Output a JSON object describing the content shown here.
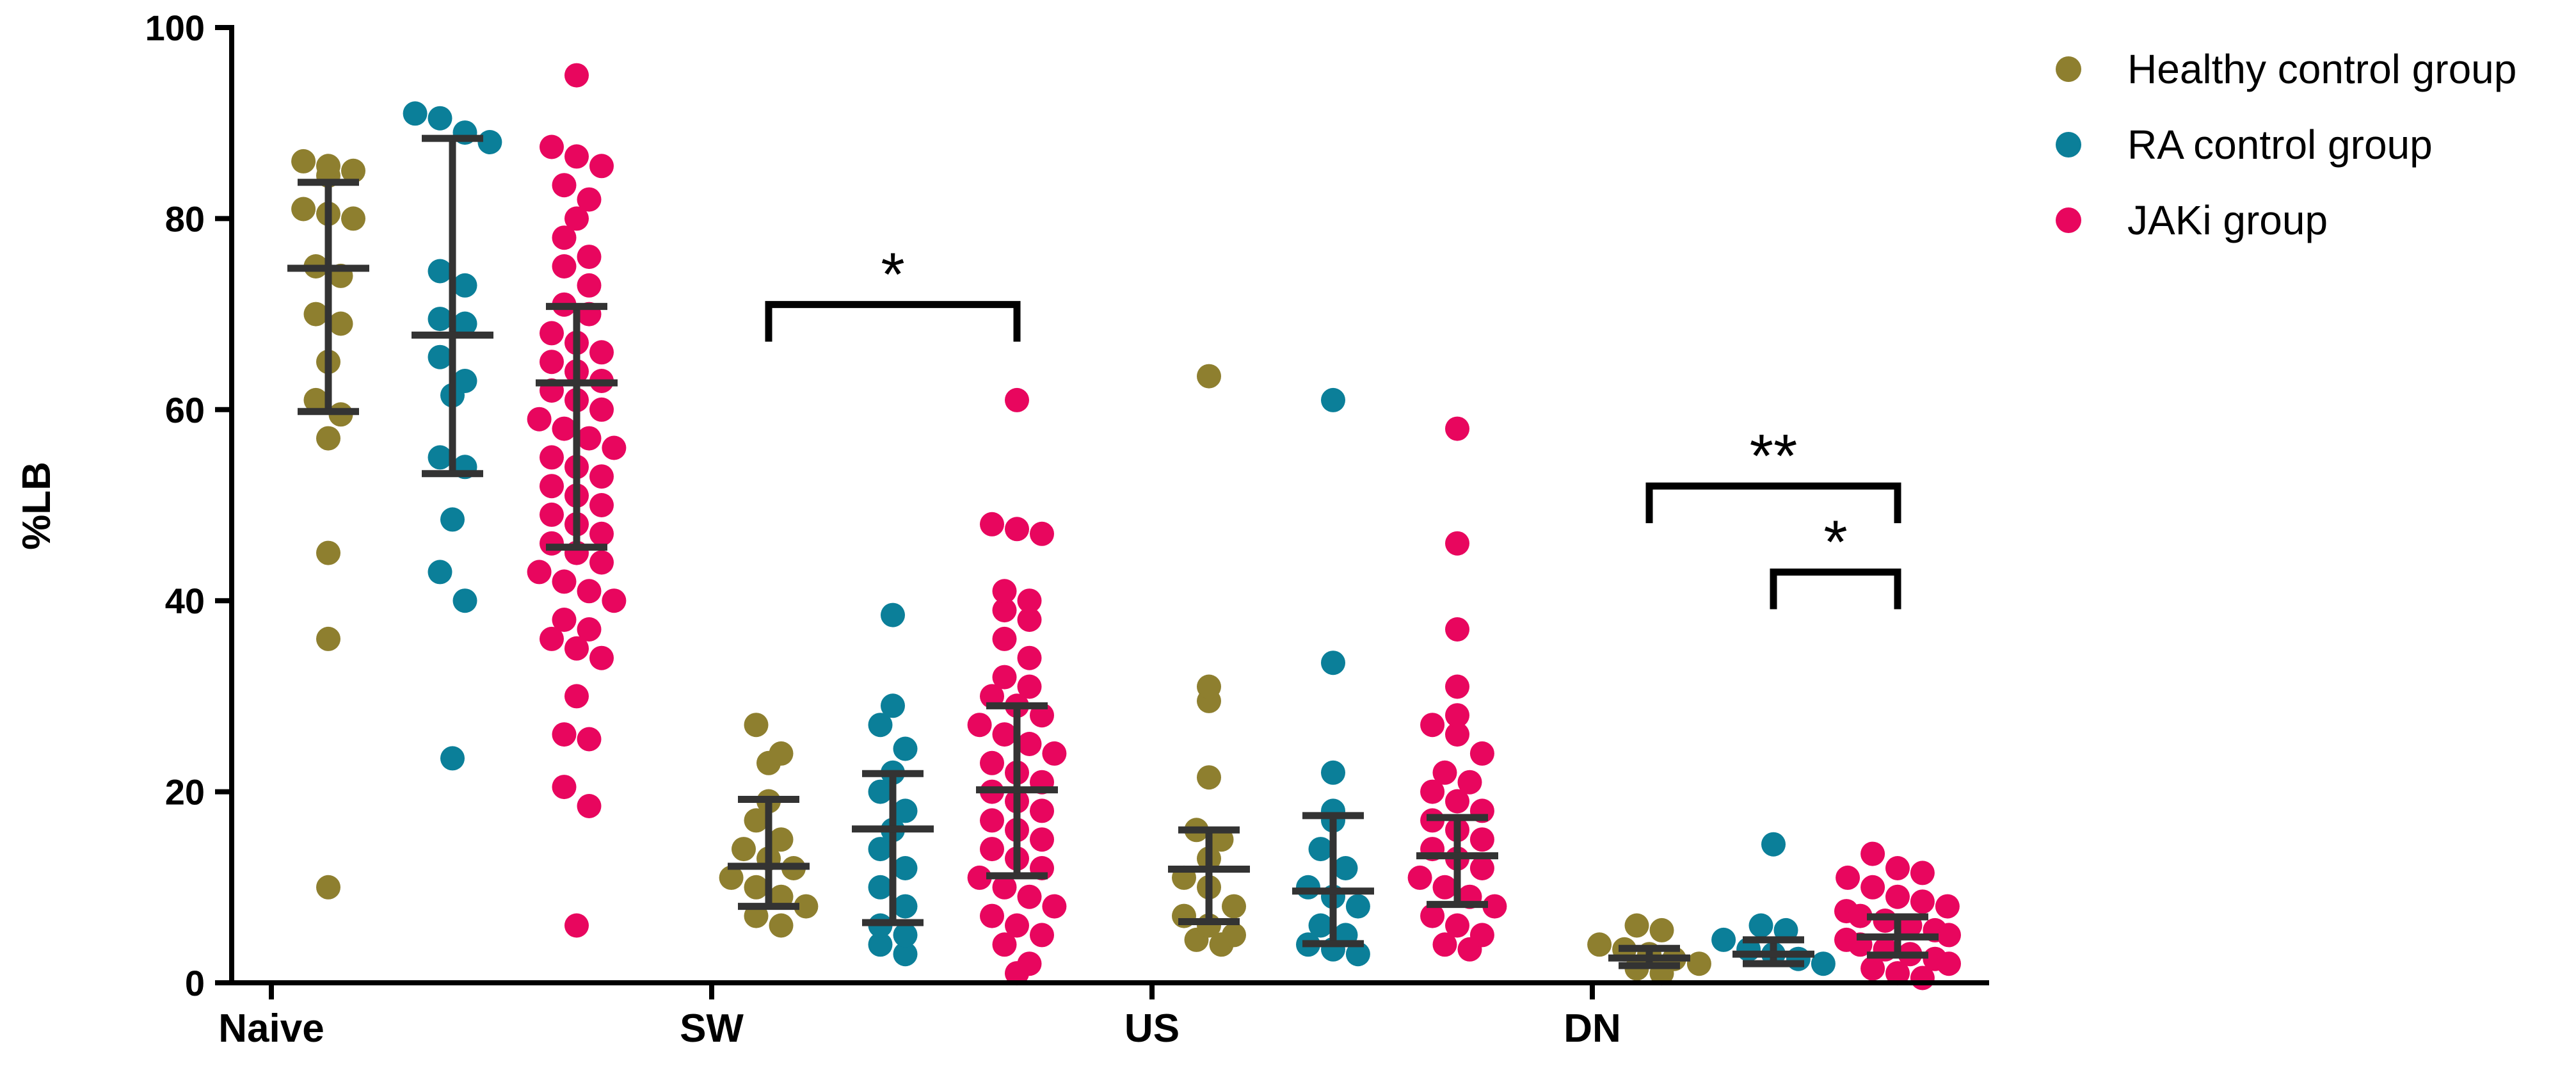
{
  "chart_data": {
    "type": "scatter",
    "ylabel": "%LB",
    "xlabel": "",
    "ylim": [
      0,
      100
    ],
    "yticks": [
      0,
      20,
      40,
      60,
      80,
      100
    ],
    "categories": [
      "Naive",
      "SW",
      "US",
      "DN"
    ],
    "legend_position": "top-right",
    "series": [
      {
        "name": "Healthy control group",
        "color": "#8e7f2f",
        "points": {
          "Naive": [
            86,
            85,
            84.5,
            85.5,
            81,
            80.5,
            80,
            75,
            74,
            70,
            69,
            65,
            61,
            59.5,
            57,
            45,
            36,
            10
          ],
          "SW": [
            27,
            24,
            23,
            19,
            17,
            15,
            14,
            13,
            12,
            11,
            10,
            9,
            8,
            7,
            6
          ],
          "US": [
            63.5,
            31,
            29.5,
            21.5,
            16,
            15,
            13,
            11,
            10,
            8,
            7,
            6,
            5,
            4.5,
            4
          ],
          "DN": [
            6,
            5.5,
            4,
            3.5,
            3,
            2.5,
            2,
            1.5,
            1
          ]
        },
        "summary": {
          "Naive": {
            "mean": 74.8,
            "low": 59.8,
            "high": 83.8
          },
          "SW": {
            "mean": 12.2,
            "low": 8.0,
            "high": 19.2
          },
          "US": {
            "mean": 11.9,
            "low": 6.4,
            "high": 16.0
          },
          "DN": {
            "mean": 2.6,
            "low": 1.8,
            "high": 3.6
          }
        }
      },
      {
        "name": "RA control group",
        "color": "#0b7f99",
        "points": {
          "Naive": [
            91,
            90.5,
            89,
            88,
            74.5,
            73,
            69.5,
            69,
            65.5,
            63,
            61.5,
            55,
            54,
            48.5,
            43,
            40,
            23.5
          ],
          "SW": [
            38.5,
            29,
            27,
            24.5,
            22,
            20,
            18,
            16,
            14,
            12,
            10,
            8,
            6,
            5,
            4,
            3
          ],
          "US": [
            61,
            33.5,
            22,
            18,
            17,
            14,
            12,
            10,
            9,
            8,
            6,
            5,
            4,
            3.5,
            3
          ],
          "DN": [
            14.5,
            6,
            5.5,
            4.5,
            3.5,
            3,
            2.5,
            2
          ]
        },
        "summary": {
          "Naive": {
            "mean": 67.8,
            "low": 53.3,
            "high": 88.4
          },
          "SW": {
            "mean": 16.1,
            "low": 6.3,
            "high": 21.9
          },
          "US": {
            "mean": 9.6,
            "low": 4.1,
            "high": 17.5
          },
          "DN": {
            "mean": 3.0,
            "low": 2.0,
            "high": 4.5
          }
        }
      },
      {
        "name": "JAKi group",
        "color": "#e8065e",
        "points": {
          "Naive": [
            95,
            87.5,
            86.5,
            85.5,
            83.5,
            82,
            80,
            78,
            76,
            75,
            73,
            71,
            70,
            68,
            67,
            66,
            65,
            64,
            63,
            62,
            61,
            60,
            59,
            58,
            57,
            56,
            55,
            54,
            53,
            52,
            51,
            50,
            49,
            48,
            47,
            46,
            45,
            44,
            43,
            42,
            41,
            40,
            38,
            37,
            36,
            35,
            34,
            30,
            26,
            25.5,
            20.5,
            18.5,
            6
          ],
          "SW": [
            61,
            48,
            47.5,
            47,
            41,
            40,
            39,
            38,
            36,
            34,
            32,
            31,
            30,
            29,
            28,
            27,
            26,
            25,
            24,
            23,
            22,
            21,
            20,
            19,
            18,
            17,
            16,
            15,
            14,
            13,
            12,
            11,
            10,
            9,
            8,
            7,
            6,
            5,
            4,
            2,
            1
          ],
          "US": [
            58,
            46,
            37,
            31,
            28,
            27,
            26,
            24,
            22,
            21,
            20,
            19,
            18,
            17,
            16,
            15,
            14,
            13,
            12,
            11,
            10,
            9,
            8,
            7,
            6,
            5,
            4,
            3.5
          ],
          "DN": [
            13.5,
            12,
            11.5,
            11,
            10,
            9,
            8.5,
            8,
            7.5,
            7,
            6.5,
            6,
            5.5,
            5,
            4.5,
            4,
            3.5,
            3,
            2.5,
            2,
            1.5,
            1,
            0.5
          ]
        },
        "summary": {
          "Naive": {
            "mean": 62.8,
            "low": 45.6,
            "high": 70.8
          },
          "SW": {
            "mean": 20.2,
            "low": 11.2,
            "high": 29.0
          },
          "US": {
            "mean": 13.3,
            "low": 8.2,
            "high": 17.3
          },
          "DN": {
            "mean": 4.8,
            "low": 2.9,
            "high": 6.9
          }
        }
      }
    ],
    "annotations": [
      {
        "label": "*",
        "category": "SW",
        "from_series": 0,
        "to_series": 2,
        "y": 71
      },
      {
        "label": "**",
        "category": "DN",
        "from_series": 0,
        "to_series": 2,
        "y": 52
      },
      {
        "label": "*",
        "category": "DN",
        "from_series": 1,
        "to_series": 2,
        "y": 43
      }
    ]
  }
}
